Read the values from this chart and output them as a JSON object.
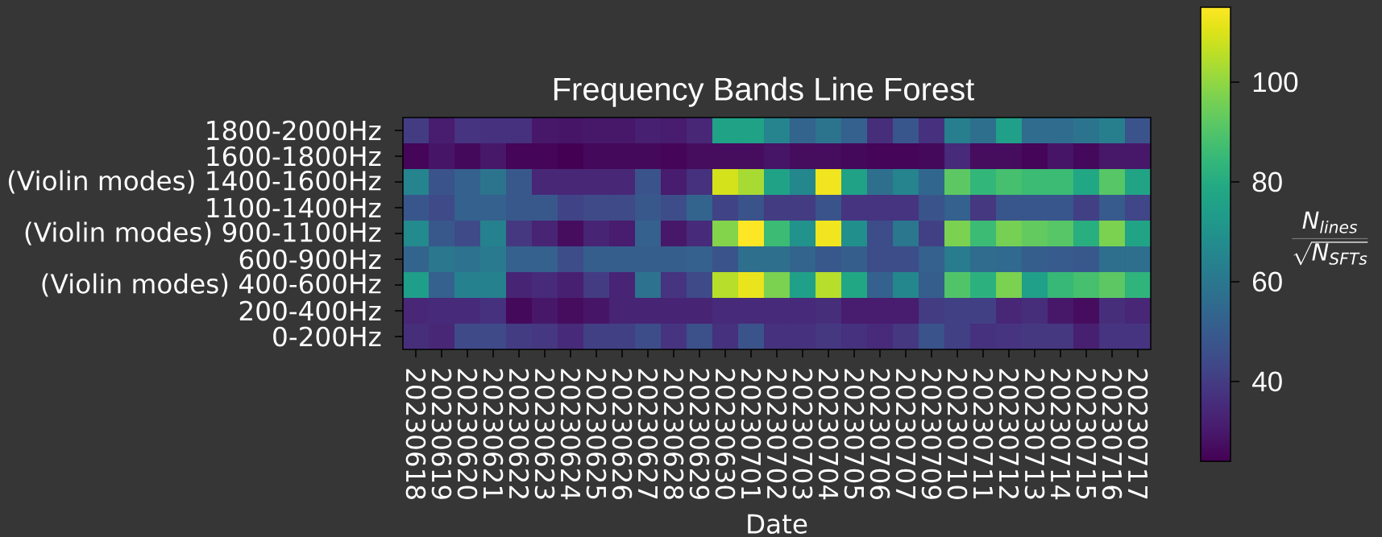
{
  "chart_data": {
    "type": "heatmap",
    "title": "Frequency Bands Line Forest",
    "xlabel": "Date",
    "clabel": "\\frac{N_{lines}}{\\sqrt{N_{SFTs}}}",
    "categories": [
      "20230618",
      "20230619",
      "20230620",
      "20230621",
      "20230622",
      "20230623",
      "20230624",
      "20230625",
      "20230626",
      "20230627",
      "20230628",
      "20230629",
      "20230630",
      "20230701",
      "20230702",
      "20230703",
      "20230704",
      "20230705",
      "20230706",
      "20230707",
      "20230709",
      "20230710",
      "20230711",
      "20230712",
      "20230713",
      "20230714",
      "20230715",
      "20230716",
      "20230717"
    ],
    "y_categories": [
      "1800-2000Hz",
      "1600-1800Hz",
      "(Violin modes) 1400-1600Hz",
      "1100-1400Hz",
      "(Violin modes) 900-1100Hz",
      "600-900Hz",
      "(Violin modes) 400-600Hz",
      "200-400Hz",
      "0-200Hz"
    ],
    "cells": [
      [
        40,
        31,
        38,
        37,
        37,
        30,
        29,
        30,
        30,
        32,
        31,
        34,
        76,
        76,
        65,
        53,
        59,
        52,
        36,
        48,
        37,
        63,
        57,
        75,
        56,
        56,
        59,
        63,
        47
      ],
      [
        25,
        29,
        26,
        30,
        25,
        25,
        24,
        26,
        26,
        26,
        25,
        27,
        27,
        27,
        29,
        27,
        27,
        26,
        25,
        25,
        26,
        35,
        27,
        27,
        25,
        29,
        26,
        30,
        30
      ],
      [
        65,
        47,
        52,
        59,
        49,
        34,
        34,
        34,
        34,
        47,
        31,
        37,
        109,
        103,
        76,
        66,
        113,
        76,
        57,
        65,
        54,
        92,
        84,
        88,
        86,
        86,
        78,
        91,
        77
      ],
      [
        48,
        44,
        52,
        52,
        49,
        49,
        42,
        44,
        44,
        49,
        45,
        53,
        42,
        47,
        40,
        40,
        47,
        38,
        38,
        38,
        47,
        52,
        39,
        48,
        48,
        48,
        41,
        50,
        43
      ],
      [
        67,
        49,
        44,
        64,
        39,
        33,
        27,
        33,
        31,
        52,
        30,
        35,
        98,
        115,
        86,
        70,
        113,
        69,
        45,
        60,
        41,
        97,
        86,
        96,
        93,
        91,
        81,
        97,
        77
      ],
      [
        53,
        60,
        58,
        61,
        52,
        52,
        45,
        51,
        51,
        51,
        51,
        52,
        47,
        57,
        57,
        53,
        49,
        51,
        45,
        45,
        52,
        62,
        56,
        55,
        51,
        50,
        49,
        57,
        57
      ],
      [
        74,
        52,
        64,
        64,
        33,
        35,
        32,
        40,
        33,
        58,
        38,
        44,
        105,
        112,
        97,
        75,
        105,
        78,
        52,
        66,
        51,
        90,
        82,
        97,
        75,
        85,
        88,
        92,
        83
      ],
      [
        34,
        35,
        35,
        37,
        26,
        30,
        27,
        29,
        33,
        33,
        33,
        33,
        35,
        35,
        35,
        35,
        36,
        31,
        31,
        31,
        40,
        41,
        41,
        34,
        36,
        30,
        27,
        36,
        34
      ],
      [
        36,
        34,
        44,
        44,
        40,
        39,
        35,
        41,
        41,
        45,
        38,
        46,
        37,
        47,
        37,
        37,
        39,
        37,
        35,
        39,
        47,
        41,
        37,
        38,
        39,
        39,
        32,
        38,
        38
      ]
    ],
    "clim": [
      24,
      115
    ],
    "cticks": [
      40,
      60,
      80,
      100
    ]
  }
}
